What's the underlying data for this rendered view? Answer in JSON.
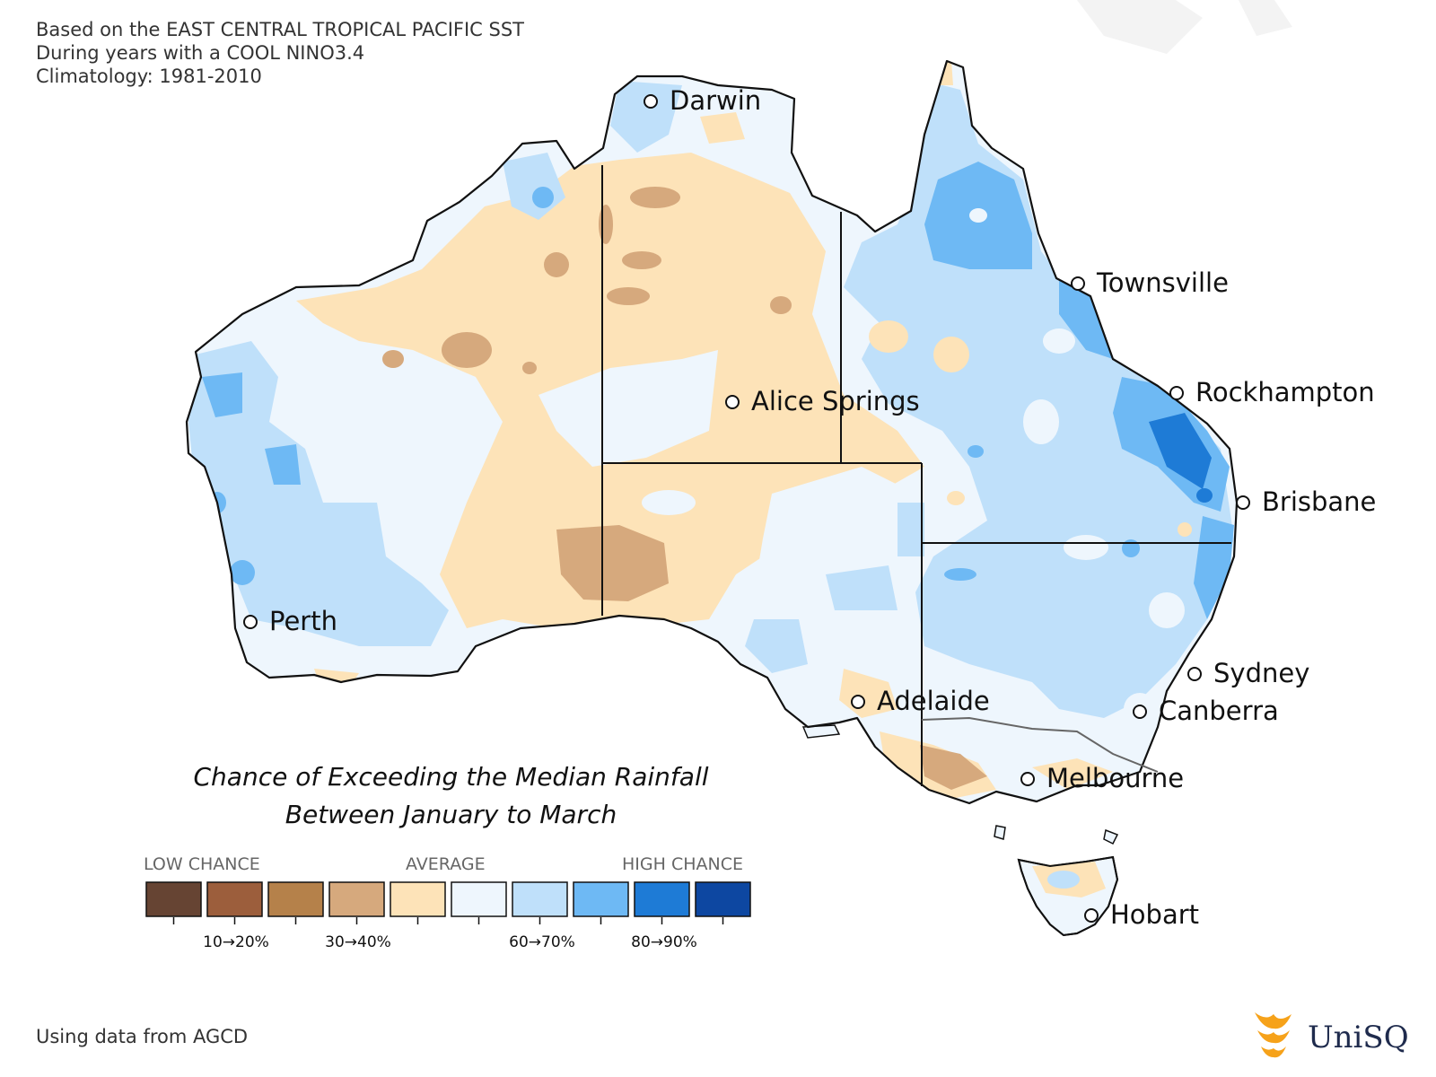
{
  "header": {
    "line1": "Based on the EAST CENTRAL TROPICAL PACIFIC SST",
    "line2": "During years with a COOL NINO3.4",
    "line3": "Climatology: 1981-2010"
  },
  "title": {
    "line1": "Chance of Exceeding the Median Rainfall",
    "line2": "Between January to March"
  },
  "cities": [
    {
      "name": "Darwin"
    },
    {
      "name": "Townsville"
    },
    {
      "name": "Rockhampton"
    },
    {
      "name": "Alice Springs"
    },
    {
      "name": "Brisbane"
    },
    {
      "name": "Perth"
    },
    {
      "name": "Sydney"
    },
    {
      "name": "Canberra"
    },
    {
      "name": "Adelaide"
    },
    {
      "name": "Melbourne"
    },
    {
      "name": "Hobart"
    }
  ],
  "legend": {
    "low_label": "LOW CHANCE",
    "average_label": "AVERAGE",
    "high_label": "HIGH CHANCE",
    "colors": [
      "#664433",
      "#9c5e3c",
      "#b5814a",
      "#d6a97d",
      "#fde3b8",
      "#eef6fd",
      "#bfe0fa",
      "#6eb9f4",
      "#1e7bd6",
      "#0d47a1"
    ],
    "tick_labels": [
      "10→20%",
      "30→40%",
      "60→70%",
      "80→90%"
    ]
  },
  "colors": {
    "below_average_light": "#fde3b8",
    "below_average_mid": "#d6a97d",
    "average": "#eef6fd",
    "above_average_light": "#bfe0fa",
    "above_average_mid": "#6eb9f4",
    "above_average_strong": "#1e7bd6"
  },
  "footer": {
    "source": "Using data from AGCD"
  },
  "logo": {
    "text": "UniSQ"
  }
}
